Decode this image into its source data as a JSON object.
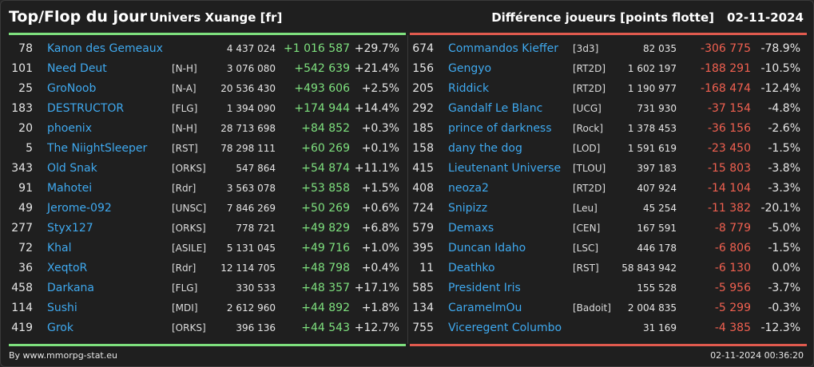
{
  "header": {
    "title": "Top/Flop du jour",
    "universe": "Univers Xuange [fr]",
    "subtitle": "Différence joueurs [points flotte]",
    "date": "02-11-2024"
  },
  "top": [
    {
      "rank": "78",
      "name": "Kanon des Gemeaux",
      "guild": "",
      "points": "4 437 024",
      "diff": "+1 016 587",
      "pct": "+29.7%"
    },
    {
      "rank": "101",
      "name": "Need Deut",
      "guild": "[N-H]",
      "points": "3 076 080",
      "diff": "+542 639",
      "pct": "+21.4%"
    },
    {
      "rank": "25",
      "name": "GroNoob",
      "guild": "[N-A]",
      "points": "20 536 430",
      "diff": "+493 606",
      "pct": "+2.5%"
    },
    {
      "rank": "183",
      "name": "DESTRUCTOR",
      "guild": "[FLG]",
      "points": "1 394 090",
      "diff": "+174 944",
      "pct": "+14.4%"
    },
    {
      "rank": "20",
      "name": "phoenix",
      "guild": "[N-H]",
      "points": "28 713 698",
      "diff": "+84 852",
      "pct": "+0.3%"
    },
    {
      "rank": "5",
      "name": "The NiightSleeper",
      "guild": "[RST]",
      "points": "78 298 111",
      "diff": "+60 269",
      "pct": "+0.1%"
    },
    {
      "rank": "343",
      "name": "Old Snak",
      "guild": "[ORKS]",
      "points": "547 864",
      "diff": "+54 874",
      "pct": "+11.1%"
    },
    {
      "rank": "91",
      "name": "Mahotei",
      "guild": "[Rdr]",
      "points": "3 563 078",
      "diff": "+53 858",
      "pct": "+1.5%"
    },
    {
      "rank": "49",
      "name": "Jerome-092",
      "guild": "[UNSC]",
      "points": "7 846 269",
      "diff": "+50 269",
      "pct": "+0.6%"
    },
    {
      "rank": "277",
      "name": "Styx127",
      "guild": "[ORKS]",
      "points": "778 721",
      "diff": "+49 829",
      "pct": "+6.8%"
    },
    {
      "rank": "72",
      "name": "Khal",
      "guild": "[ASILE]",
      "points": "5 131 045",
      "diff": "+49 716",
      "pct": "+1.0%"
    },
    {
      "rank": "36",
      "name": "XeqtoR",
      "guild": "[Rdr]",
      "points": "12 114 705",
      "diff": "+48 798",
      "pct": "+0.4%"
    },
    {
      "rank": "458",
      "name": "Darkana",
      "guild": "[FLG]",
      "points": "330 533",
      "diff": "+48 357",
      "pct": "+17.1%"
    },
    {
      "rank": "114",
      "name": "Sushi",
      "guild": "[MDI]",
      "points": "2 612 960",
      "diff": "+44 892",
      "pct": "+1.8%"
    },
    {
      "rank": "419",
      "name": "Grok",
      "guild": "[ORKS]",
      "points": "396 136",
      "diff": "+44 543",
      "pct": "+12.7%"
    }
  ],
  "flop": [
    {
      "rank": "674",
      "name": "Commandos Kieffer",
      "guild": "[3d3]",
      "points": "82 035",
      "diff": "-306 775",
      "pct": "-78.9%"
    },
    {
      "rank": "156",
      "name": "Gengyo",
      "guild": "[RT2D]",
      "points": "1 602 197",
      "diff": "-188 291",
      "pct": "-10.5%"
    },
    {
      "rank": "205",
      "name": "Riddick",
      "guild": "[RT2D]",
      "points": "1 190 977",
      "diff": "-168 474",
      "pct": "-12.4%"
    },
    {
      "rank": "292",
      "name": "Gandalf Le Blanc",
      "guild": "[UCG]",
      "points": "731 930",
      "diff": "-37 154",
      "pct": "-4.8%"
    },
    {
      "rank": "185",
      "name": "prince of darkness",
      "guild": "[Rock]",
      "points": "1 378 453",
      "diff": "-36 156",
      "pct": "-2.6%"
    },
    {
      "rank": "158",
      "name": "dany the dog",
      "guild": "[LOD]",
      "points": "1 591 619",
      "diff": "-23 450",
      "pct": "-1.5%"
    },
    {
      "rank": "415",
      "name": "Lieutenant Universe",
      "guild": "[TLOU]",
      "points": "397 183",
      "diff": "-15 803",
      "pct": "-3.8%"
    },
    {
      "rank": "408",
      "name": "neoza2",
      "guild": "[RT2D]",
      "points": "407 924",
      "diff": "-14 104",
      "pct": "-3.3%"
    },
    {
      "rank": "724",
      "name": "Snipizz",
      "guild": "[Leu]",
      "points": "45 254",
      "diff": "-11 382",
      "pct": "-20.1%"
    },
    {
      "rank": "579",
      "name": "Demaxs",
      "guild": "[CEN]",
      "points": "167 591",
      "diff": "-8 779",
      "pct": "-5.0%"
    },
    {
      "rank": "395",
      "name": "Duncan Idaho",
      "guild": "[LSC]",
      "points": "446 178",
      "diff": "-6 806",
      "pct": "-1.5%"
    },
    {
      "rank": "11",
      "name": "Deathko",
      "guild": "[RST]",
      "points": "58 843 942",
      "diff": "-6 130",
      "pct": "0.0%"
    },
    {
      "rank": "585",
      "name": "President Iris",
      "guild": "",
      "points": "155 528",
      "diff": "-5 956",
      "pct": "-3.7%"
    },
    {
      "rank": "134",
      "name": "CaramelmOu",
      "guild": "[Badoit]",
      "points": "2 004 835",
      "diff": "-5 299",
      "pct": "-0.3%"
    },
    {
      "rank": "755",
      "name": "Viceregent Columbo",
      "guild": "",
      "points": "31 169",
      "diff": "-4 385",
      "pct": "-12.3%"
    }
  ],
  "footer": {
    "credit": "By www.mmorpg-stat.eu",
    "timestamp": "02-11-2024 00:36:20"
  },
  "colors": {
    "background": "#1f1f1f",
    "positive": "#7ee07e",
    "negative": "#f06050",
    "name": "#3fa9ef"
  }
}
